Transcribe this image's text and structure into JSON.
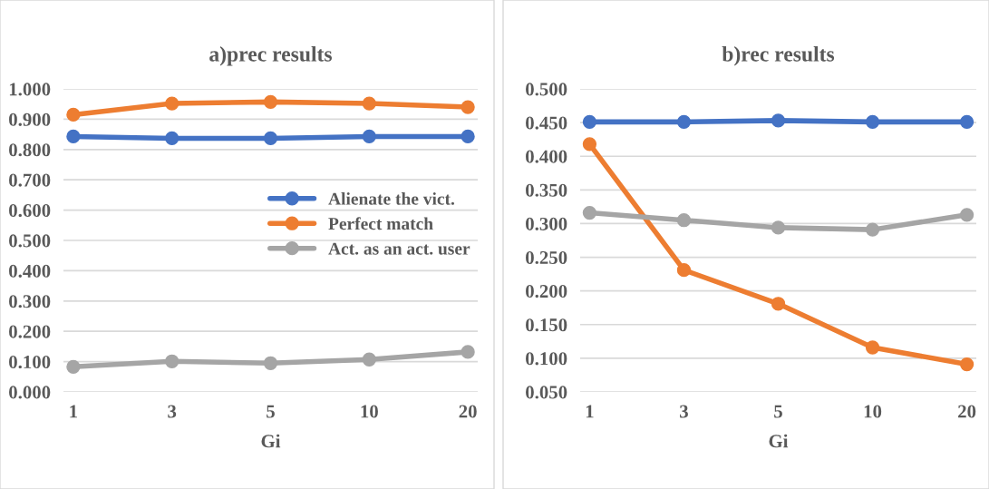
{
  "chart_data": [
    {
      "type": "line",
      "title": "a)prec results",
      "xlabel": "Gi",
      "categories": [
        "1",
        "3",
        "5",
        "10",
        "20"
      ],
      "series": [
        {
          "name": "Alienate the vict.",
          "color": "#4472c4",
          "values": [
            0.843,
            0.837,
            0.837,
            0.843,
            0.843
          ]
        },
        {
          "name": "Perfect match",
          "color": "#ed7d31",
          "values": [
            0.915,
            0.952,
            0.957,
            0.952,
            0.94
          ]
        },
        {
          "name": "Act. as an act. user",
          "color": "#a5a5a5",
          "values": [
            0.083,
            0.101,
            0.095,
            0.107,
            0.132
          ]
        }
      ],
      "ylim": [
        0,
        1.0
      ],
      "yticks": [
        {
          "value": 0,
          "label": "0.000"
        },
        {
          "value": 0.1,
          "label": "0.100"
        },
        {
          "value": 0.2,
          "label": "0.200"
        },
        {
          "value": 0.3,
          "label": "0.300"
        },
        {
          "value": 0.4,
          "label": "0.400"
        },
        {
          "value": 0.5,
          "label": "0.500"
        },
        {
          "value": 0.6,
          "label": "0.600"
        },
        {
          "value": 0.7,
          "label": "0.700"
        },
        {
          "value": 0.8,
          "label": "0.800"
        },
        {
          "value": 0.9,
          "label": "0.900"
        },
        {
          "value": 1.0,
          "label": "1.000"
        }
      ],
      "grid": "y",
      "legend": "right",
      "marker": "circle",
      "line_style": "solid"
    },
    {
      "type": "line",
      "title": "b)rec results",
      "xlabel": "Gi",
      "categories": [
        "1",
        "3",
        "5",
        "10",
        "20"
      ],
      "series": [
        {
          "color": "#4472c4",
          "values": [
            0.451,
            0.451,
            0.453,
            0.451,
            0.451
          ]
        },
        {
          "color": "#ed7d31",
          "values": [
            0.418,
            0.231,
            0.181,
            0.116,
            0.091
          ]
        },
        {
          "color": "#a5a5a5",
          "values": [
            0.316,
            0.305,
            0.294,
            0.291,
            0.313
          ]
        }
      ],
      "ylim": [
        0.05,
        0.5
      ],
      "yticks": [
        {
          "value": 0.05,
          "label": "0.050"
        },
        {
          "value": 0.1,
          "label": "0.100"
        },
        {
          "value": 0.15,
          "label": "0.150"
        },
        {
          "value": 0.2,
          "label": "0.200"
        },
        {
          "value": 0.25,
          "label": "0.250"
        },
        {
          "value": 0.3,
          "label": "0.300"
        },
        {
          "value": 0.35,
          "label": "0.350"
        },
        {
          "value": 0.4,
          "label": "0.400"
        },
        {
          "value": 0.45,
          "label": "0.450"
        },
        {
          "value": 0.5,
          "label": "0.500"
        }
      ],
      "grid": "y",
      "marker": "circle",
      "line_style": "solid"
    }
  ]
}
